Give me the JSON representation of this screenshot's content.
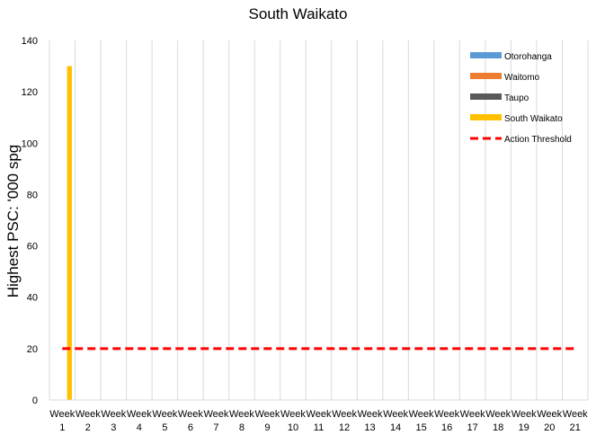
{
  "chart_data": {
    "type": "bar",
    "title": "South Waikato",
    "xlabel": "",
    "ylabel": "Highest PSC: '000 spg",
    "ylim": [
      0,
      140
    ],
    "yticks": [
      0,
      20,
      40,
      60,
      80,
      100,
      120,
      140
    ],
    "grid": "vertical",
    "legend_position": "top-right",
    "categories": [
      [
        "Week",
        "1"
      ],
      [
        "Week",
        "2"
      ],
      [
        "Week",
        "3"
      ],
      [
        "Week",
        "4"
      ],
      [
        "Week",
        "5"
      ],
      [
        "Week",
        "6"
      ],
      [
        "Week",
        "7"
      ],
      [
        "Week",
        "8"
      ],
      [
        "Week",
        "9"
      ],
      [
        "Week",
        "10"
      ],
      [
        "Week",
        "11"
      ],
      [
        "Week",
        "12"
      ],
      [
        "Week",
        "13"
      ],
      [
        "Week",
        "14"
      ],
      [
        "Week",
        "15"
      ],
      [
        "Week",
        "16"
      ],
      [
        "Week",
        "17"
      ],
      [
        "Week",
        "18"
      ],
      [
        "Week",
        "19"
      ],
      [
        "Week",
        "20"
      ],
      [
        "Week",
        "21"
      ]
    ],
    "series": [
      {
        "name": "Otorohanga",
        "type": "bar",
        "color": "#5B9BD5",
        "values": [
          null,
          null,
          null,
          null,
          null,
          null,
          null,
          null,
          null,
          null,
          null,
          null,
          null,
          null,
          null,
          null,
          null,
          null,
          null,
          null,
          null
        ]
      },
      {
        "name": "Waitomo",
        "type": "bar",
        "color": "#ED7D31",
        "values": [
          null,
          null,
          null,
          null,
          null,
          null,
          null,
          null,
          null,
          null,
          null,
          null,
          null,
          null,
          null,
          null,
          null,
          null,
          null,
          null,
          null
        ]
      },
      {
        "name": "Taupo",
        "type": "bar",
        "color": "#595959",
        "values": [
          null,
          null,
          null,
          null,
          null,
          null,
          null,
          null,
          null,
          null,
          null,
          null,
          null,
          null,
          null,
          null,
          null,
          null,
          null,
          null,
          null
        ]
      },
      {
        "name": "South Waikato",
        "type": "bar",
        "color": "#FFC000",
        "values": [
          130,
          null,
          null,
          null,
          null,
          null,
          null,
          null,
          null,
          null,
          null,
          null,
          null,
          null,
          null,
          null,
          null,
          null,
          null,
          null,
          null
        ]
      },
      {
        "name": "Action Threshold",
        "type": "line",
        "style": "dashed",
        "color": "#FF0000",
        "values": [
          20,
          20,
          20,
          20,
          20,
          20,
          20,
          20,
          20,
          20,
          20,
          20,
          20,
          20,
          20,
          20,
          20,
          20,
          20,
          20,
          20
        ]
      }
    ]
  }
}
